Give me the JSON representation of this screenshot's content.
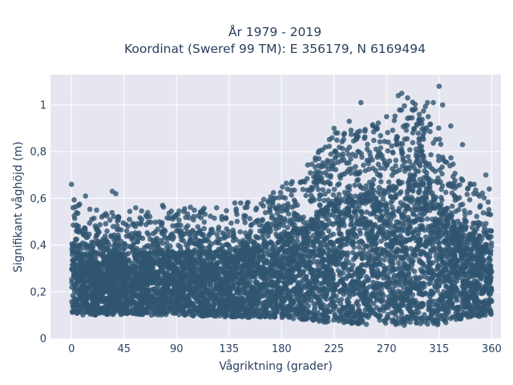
{
  "chart_data": {
    "type": "scatter",
    "title_line1": "År 1979 - 2019",
    "title_line2": "Koordinat (Sweref 99 TM): E 356179, N 6169494",
    "xlabel": "Vågriktning (grader)",
    "ylabel": "Signifikant våghöjd (m)",
    "xlim": [
      -18,
      368
    ],
    "ylim": [
      0,
      1.13
    ],
    "x_ticks": [
      0,
      45,
      90,
      135,
      180,
      225,
      270,
      315,
      360
    ],
    "x_tick_labels": [
      "0",
      "45",
      "90",
      "135",
      "180",
      "225",
      "270",
      "315",
      "360"
    ],
    "y_ticks": [
      0,
      0.2,
      0.4,
      0.6,
      0.8,
      1.0
    ],
    "y_tick_labels": [
      "0",
      "0,2",
      "0,4",
      "0,6",
      "0,8",
      "1"
    ],
    "grid": true,
    "marker_color": "#2f5570",
    "plot_background": "#e5e6f0",
    "envelope": {
      "x": [
        0,
        20,
        45,
        90,
        135,
        160,
        180,
        200,
        215,
        225,
        245,
        260,
        275,
        290,
        300,
        315,
        330,
        345,
        360
      ],
      "y_min": [
        0.1,
        0.1,
        0.1,
        0.1,
        0.09,
        0.09,
        0.09,
        0.08,
        0.07,
        0.07,
        0.06,
        0.06,
        0.06,
        0.05,
        0.05,
        0.06,
        0.08,
        0.09,
        0.1
      ],
      "y_max": [
        0.5,
        0.45,
        0.45,
        0.47,
        0.46,
        0.5,
        0.55,
        0.63,
        0.72,
        0.78,
        0.8,
        0.82,
        0.86,
        0.92,
        0.92,
        0.8,
        0.62,
        0.55,
        0.5
      ]
    },
    "outliers": [
      {
        "x": 0,
        "y": 0.66
      },
      {
        "x": 12,
        "y": 0.61
      },
      {
        "x": 35,
        "y": 0.63
      },
      {
        "x": 38,
        "y": 0.62
      },
      {
        "x": 55,
        "y": 0.56
      },
      {
        "x": 78,
        "y": 0.57
      },
      {
        "x": 140,
        "y": 0.58
      },
      {
        "x": 145,
        "y": 0.58
      },
      {
        "x": 170,
        "y": 0.55
      },
      {
        "x": 212,
        "y": 0.77
      },
      {
        "x": 225,
        "y": 0.9
      },
      {
        "x": 228,
        "y": 0.88
      },
      {
        "x": 238,
        "y": 0.93
      },
      {
        "x": 248,
        "y": 1.01
      },
      {
        "x": 262,
        "y": 0.9
      },
      {
        "x": 270,
        "y": 0.95
      },
      {
        "x": 280,
        "y": 1.04
      },
      {
        "x": 283,
        "y": 1.05
      },
      {
        "x": 288,
        "y": 1.03
      },
      {
        "x": 292,
        "y": 0.98
      },
      {
        "x": 298,
        "y": 0.96
      },
      {
        "x": 305,
        "y": 1.01
      },
      {
        "x": 310,
        "y": 1.01
      },
      {
        "x": 315,
        "y": 1.08
      },
      {
        "x": 318,
        "y": 1.0
      },
      {
        "x": 325,
        "y": 0.91
      },
      {
        "x": 335,
        "y": 0.83
      },
      {
        "x": 345,
        "y": 0.66
      },
      {
        "x": 355,
        "y": 0.7
      },
      {
        "x": 358,
        "y": 0.64
      }
    ]
  }
}
